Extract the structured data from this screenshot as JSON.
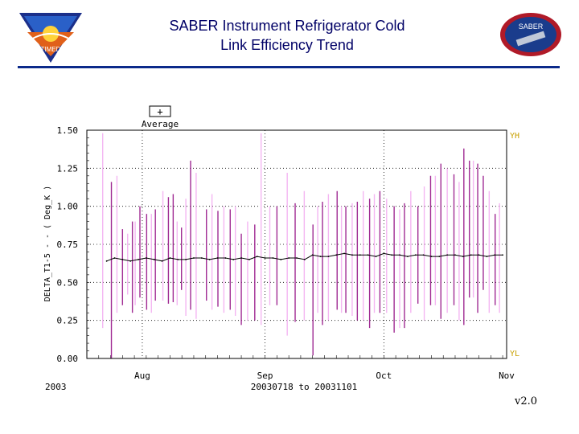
{
  "header": {
    "title_line1": "SABER Instrument Refrigerator Cold",
    "title_line2": "Link Efficiency Trend",
    "left_logo_text": "TIMED",
    "right_logo_text": "SABER"
  },
  "colors": {
    "rule": "#0b2a8a",
    "title": "#000066",
    "spike_dark": "#a02b93",
    "spike_light": "#f4b6f2",
    "average_line": "#000000",
    "limit_label": "#c8a000"
  },
  "chart_data": {
    "type": "line",
    "title": "",
    "ylabel": "DELTA_T1-5 - - ( Deg_K )",
    "xlabel": "20030718 to 20031101",
    "year_label": "2003",
    "version_label": "v2.0",
    "ylim": [
      0.0,
      1.5
    ],
    "yticks": [
      "0.00",
      "0.25",
      "0.50",
      "0.75",
      "1.00",
      "1.25",
      "1.50"
    ],
    "xlim_days": [
      0,
      106
    ],
    "xticks": [
      {
        "label": "Aug",
        "day": 14
      },
      {
        "label": "Sep",
        "day": 45
      },
      {
        "label": "Oct",
        "day": 75
      },
      {
        "label": "Nov",
        "day": 106
      }
    ],
    "grid": true,
    "legend": {
      "symbol": "+",
      "label": "Average",
      "placement": "top-left"
    },
    "limit_labels": {
      "upper": "YH",
      "lower": "YL"
    },
    "series": [
      {
        "name": "Average",
        "x": [
          5,
          7,
          9,
          11,
          13,
          15,
          17,
          19,
          21,
          23,
          25,
          27,
          29,
          31,
          33,
          35,
          37,
          39,
          41,
          43,
          45,
          47,
          49,
          51,
          53,
          55,
          57,
          59,
          61,
          63,
          65,
          67,
          69,
          71,
          73,
          75,
          77,
          79,
          81,
          83,
          85,
          87,
          89,
          91,
          93,
          95,
          97,
          99,
          101,
          103,
          105
        ],
        "y": [
          0.64,
          0.66,
          0.65,
          0.64,
          0.65,
          0.66,
          0.65,
          0.64,
          0.66,
          0.65,
          0.65,
          0.66,
          0.66,
          0.65,
          0.66,
          0.66,
          0.65,
          0.66,
          0.65,
          0.67,
          0.66,
          0.66,
          0.65,
          0.66,
          0.66,
          0.65,
          0.68,
          0.67,
          0.67,
          0.68,
          0.69,
          0.68,
          0.68,
          0.68,
          0.67,
          0.69,
          0.68,
          0.68,
          0.67,
          0.68,
          0.68,
          0.67,
          0.67,
          0.68,
          0.68,
          0.67,
          0.68,
          0.68,
          0.67,
          0.68,
          0.68
        ]
      }
    ],
    "spikes_dark": [
      {
        "day": 6.2,
        "low": 0.0,
        "high": 1.16
      },
      {
        "day": 9.0,
        "low": 0.35,
        "high": 0.85
      },
      {
        "day": 11.5,
        "low": 0.3,
        "high": 0.9
      },
      {
        "day": 13.4,
        "low": 0.4,
        "high": 1.0
      },
      {
        "day": 15.1,
        "low": 0.32,
        "high": 0.95
      },
      {
        "day": 17.3,
        "low": 0.38,
        "high": 0.98
      },
      {
        "day": 20.6,
        "low": 0.36,
        "high": 1.06
      },
      {
        "day": 21.8,
        "low": 0.37,
        "high": 1.08
      },
      {
        "day": 23.9,
        "low": 0.45,
        "high": 0.86
      },
      {
        "day": 26.2,
        "low": 0.32,
        "high": 1.3
      },
      {
        "day": 30.2,
        "low": 0.38,
        "high": 0.98
      },
      {
        "day": 33.1,
        "low": 0.34,
        "high": 0.97
      },
      {
        "day": 36.2,
        "low": 0.32,
        "high": 0.98
      },
      {
        "day": 39.0,
        "low": 0.22,
        "high": 0.82
      },
      {
        "day": 42.4,
        "low": 0.25,
        "high": 0.88
      },
      {
        "day": 48.0,
        "low": 0.35,
        "high": 1.0
      },
      {
        "day": 52.6,
        "low": 0.24,
        "high": 1.02
      },
      {
        "day": 57.1,
        "low": 0.02,
        "high": 0.88
      },
      {
        "day": 59.5,
        "low": 0.22,
        "high": 1.03
      },
      {
        "day": 63.2,
        "low": 0.32,
        "high": 1.1
      },
      {
        "day": 65.4,
        "low": 0.3,
        "high": 1.0
      },
      {
        "day": 68.3,
        "low": 0.25,
        "high": 1.03
      },
      {
        "day": 71.4,
        "low": 0.2,
        "high": 1.05
      },
      {
        "day": 74.0,
        "low": 0.3,
        "high": 1.1
      },
      {
        "day": 77.6,
        "low": 0.17,
        "high": 1.0
      },
      {
        "day": 80.2,
        "low": 0.2,
        "high": 1.02
      },
      {
        "day": 83.6,
        "low": 0.36,
        "high": 1.0
      },
      {
        "day": 86.8,
        "low": 0.35,
        "high": 1.2
      },
      {
        "day": 89.4,
        "low": 0.26,
        "high": 1.28
      },
      {
        "day": 92.7,
        "low": 0.35,
        "high": 1.21
      },
      {
        "day": 95.2,
        "low": 0.22,
        "high": 1.38
      },
      {
        "day": 96.6,
        "low": 0.4,
        "high": 1.3
      },
      {
        "day": 98.7,
        "low": 0.3,
        "high": 1.28
      },
      {
        "day": 100.1,
        "low": 0.45,
        "high": 1.2
      },
      {
        "day": 103.1,
        "low": 0.35,
        "high": 0.95
      }
    ],
    "spikes_light": [
      {
        "day": 4.0,
        "low": 0.2,
        "high": 1.48
      },
      {
        "day": 7.6,
        "low": 0.3,
        "high": 1.2
      },
      {
        "day": 10.3,
        "low": 0.42,
        "high": 0.82
      },
      {
        "day": 12.2,
        "low": 0.35,
        "high": 0.9
      },
      {
        "day": 16.3,
        "low": 0.3,
        "high": 0.95
      },
      {
        "day": 19.2,
        "low": 0.38,
        "high": 1.1
      },
      {
        "day": 22.8,
        "low": 0.35,
        "high": 0.9
      },
      {
        "day": 25.0,
        "low": 0.28,
        "high": 1.05
      },
      {
        "day": 27.6,
        "low": 0.26,
        "high": 1.22
      },
      {
        "day": 31.6,
        "low": 0.32,
        "high": 1.08
      },
      {
        "day": 34.6,
        "low": 0.3,
        "high": 1.0
      },
      {
        "day": 37.5,
        "low": 0.28,
        "high": 1.0
      },
      {
        "day": 40.6,
        "low": 0.25,
        "high": 0.9
      },
      {
        "day": 44.0,
        "low": 0.22,
        "high": 1.48
      },
      {
        "day": 46.2,
        "low": 0.35,
        "high": 1.0
      },
      {
        "day": 50.6,
        "low": 0.15,
        "high": 1.22
      },
      {
        "day": 54.9,
        "low": 0.25,
        "high": 1.1
      },
      {
        "day": 58.3,
        "low": 0.3,
        "high": 1.0
      },
      {
        "day": 61.0,
        "low": 0.25,
        "high": 1.08
      },
      {
        "day": 64.3,
        "low": 0.3,
        "high": 1.0
      },
      {
        "day": 67.0,
        "low": 0.28,
        "high": 1.02
      },
      {
        "day": 69.8,
        "low": 0.25,
        "high": 1.1
      },
      {
        "day": 72.6,
        "low": 0.3,
        "high": 1.08
      },
      {
        "day": 75.7,
        "low": 0.3,
        "high": 1.05
      },
      {
        "day": 79.0,
        "low": 0.2,
        "high": 0.98
      },
      {
        "day": 81.8,
        "low": 0.3,
        "high": 1.1
      },
      {
        "day": 85.2,
        "low": 0.25,
        "high": 1.13
      },
      {
        "day": 88.0,
        "low": 0.35,
        "high": 1.2
      },
      {
        "day": 91.0,
        "low": 0.3,
        "high": 1.25
      },
      {
        "day": 94.0,
        "low": 0.25,
        "high": 1.16
      },
      {
        "day": 97.6,
        "low": 0.4,
        "high": 1.3
      },
      {
        "day": 101.6,
        "low": 0.3,
        "high": 1.1
      },
      {
        "day": 104.2,
        "low": 0.3,
        "high": 1.02
      }
    ]
  }
}
